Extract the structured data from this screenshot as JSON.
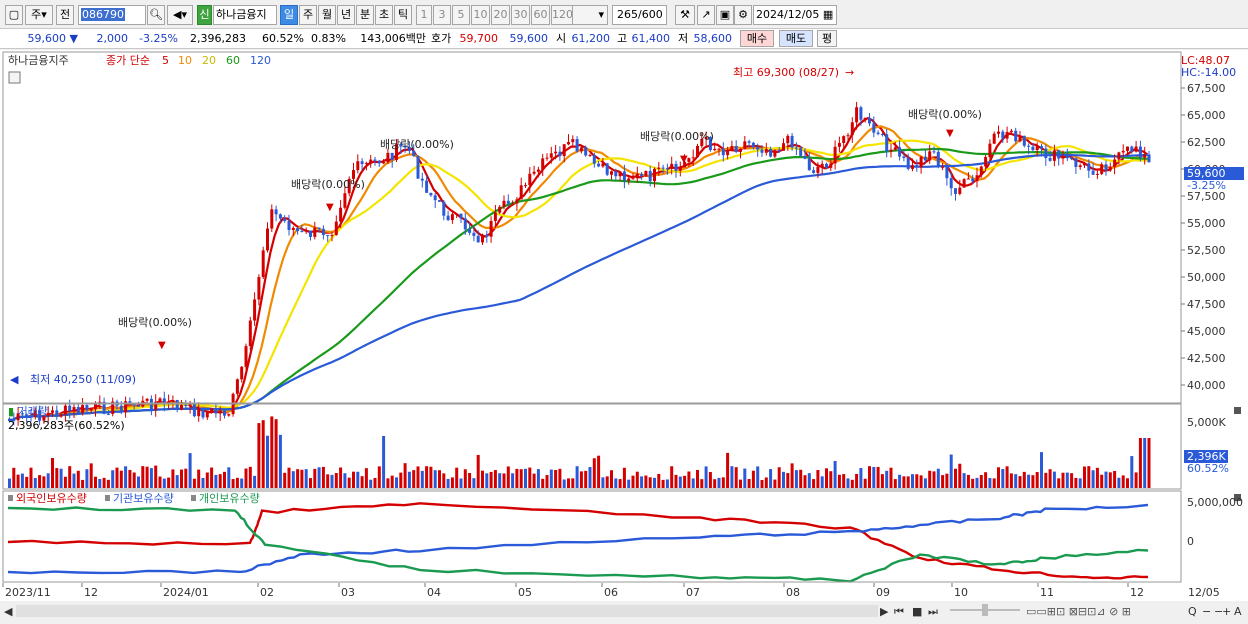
{
  "toolbar": {
    "period_select": "주",
    "prev_label": "전",
    "stock_code": "086790",
    "badge": "신",
    "stock_name": "하나금융지",
    "periods": [
      "일",
      "주",
      "월",
      "년",
      "분",
      "초",
      "틱"
    ],
    "intervals": [
      "1",
      "3",
      "5",
      "10",
      "20",
      "30",
      "60",
      "120"
    ],
    "count": "265",
    "count_total": "/600",
    "date": "2024/12/05"
  },
  "quote": {
    "price": "59,600",
    "change": "2,000",
    "change_pct": "-3.25%",
    "volume": "2,396,283",
    "vol_ratio": "60.52%",
    "turnover": "0.83%",
    "amount": "143,006백만",
    "bid_label": "호가",
    "bid1": "59,700",
    "bid2": "59,600",
    "open_label": "시",
    "open": "61,200",
    "high_label": "고",
    "high": "61,400",
    "low_label": "저",
    "low": "58,600",
    "buy_label": "매수",
    "sell_label": "매도",
    "avg_label": "평"
  },
  "price_panel": {
    "title": "하나금융지주",
    "ma_label": "종가 단순",
    "ma_periods": [
      "5",
      "10",
      "20",
      "60",
      "120"
    ],
    "ma_colors": [
      "#d40000",
      "#f08a00",
      "#f5e400",
      "#1a9a1a",
      "#2a5ad8"
    ],
    "lc": "LC:48.07",
    "hc": "HC:-14.00",
    "current_price": "59,600",
    "current_pct": "-3.25%",
    "max_annotation": "최고 69,300 (08/27)",
    "min_annotation": "최저 40,250 (11/09)",
    "dividend_label": "배당락(0.00%)",
    "y_ticks": [
      "67,500",
      "65,000",
      "62,500",
      "60,000",
      "57,500",
      "55,000",
      "52,500",
      "50,000",
      "47,500",
      "45,000",
      "42,500",
      "40,000"
    ]
  },
  "volume_panel": {
    "title": "거래량",
    "value": "2,396,283주(60.52%)",
    "y_tick": "5,000K",
    "current": "2,396K",
    "current_pct": "60.52%"
  },
  "holdings_panel": {
    "legend": [
      "외국인보유수량",
      "기관보유수량",
      "개인보유수량"
    ],
    "colors": [
      "#d40000",
      "#2a5ad8",
      "#1a9a50"
    ],
    "y_ticks": [
      "5,000,000",
      "0"
    ]
  },
  "x_axis": [
    "2023/11",
    "12",
    "2024/01",
    "02",
    "03",
    "04",
    "05",
    "06",
    "07",
    "08",
    "09",
    "10",
    "11",
    "12",
    "12/05"
  ]
}
